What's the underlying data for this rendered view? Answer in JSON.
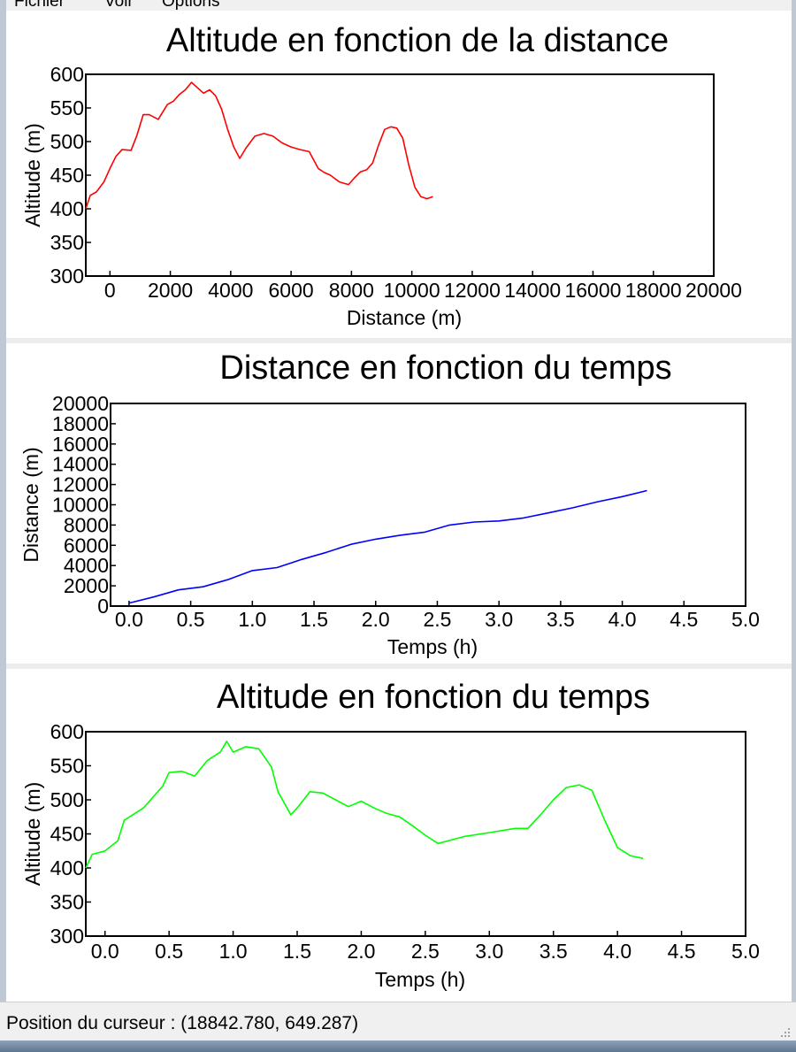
{
  "menu": [
    "Fichier",
    "Voir",
    "Options"
  ],
  "status": {
    "text": "Position du curseur : (18842.780, 649.287)"
  },
  "colors": {
    "altitude_distance": "#ff0000",
    "distance_time": "#0000ff",
    "altitude_time": "#00ff00"
  },
  "chart_data": [
    {
      "type": "line",
      "title": "Altitude en fonction de la distance",
      "xlabel": "Distance (m)",
      "ylabel": "Altitude (m)",
      "xlim": [
        -800,
        20000
      ],
      "ylim": [
        300,
        600
      ],
      "xticks": [
        0,
        2000,
        4000,
        6000,
        8000,
        10000,
        12000,
        14000,
        16000,
        18000,
        20000
      ],
      "xtick_labels": [
        "0",
        "2000",
        "4000",
        "6000",
        "8000",
        "10000",
        "12000",
        "14000",
        "16000",
        "18000",
        "20000"
      ],
      "yticks": [
        300,
        350,
        400,
        450,
        500,
        550,
        600
      ],
      "ytick_labels": [
        "300",
        "350",
        "400",
        "450",
        "500",
        "550",
        "600"
      ],
      "color": "#ff0000",
      "series": [
        {
          "x": [
            -800,
            -650,
            -450,
            -200,
            0,
            200,
            400,
            700,
            900,
            1100,
            1300,
            1600,
            1900,
            2100,
            2300,
            2500,
            2700,
            2900,
            3100,
            3300,
            3500,
            3700,
            3900,
            4100,
            4300,
            4500,
            4800,
            5100,
            5400,
            5700,
            6000,
            6300,
            6600,
            6900,
            7100,
            7300,
            7600,
            7900,
            8100,
            8300,
            8500,
            8700,
            8900,
            9100,
            9300,
            9500,
            9700,
            9900,
            10100,
            10300,
            10500,
            10700
          ],
          "y": [
            400,
            420,
            425,
            440,
            460,
            478,
            488,
            487,
            510,
            540,
            540,
            533,
            555,
            560,
            570,
            577,
            588,
            580,
            572,
            577,
            568,
            548,
            518,
            492,
            475,
            490,
            508,
            512,
            508,
            498,
            492,
            488,
            485,
            460,
            454,
            450,
            440,
            436,
            446,
            455,
            458,
            468,
            495,
            518,
            522,
            520,
            505,
            465,
            432,
            418,
            415,
            418
          ]
        }
      ]
    },
    {
      "type": "line",
      "title": "Distance en fonction du temps",
      "xlabel": "Temps (h)",
      "ylabel": "Distance (m)",
      "xlim": [
        -0.15,
        5.0
      ],
      "ylim": [
        0,
        20000
      ],
      "xticks": [
        0,
        0.5,
        1,
        1.5,
        2,
        2.5,
        3,
        3.5,
        4,
        4.5,
        5
      ],
      "xtick_labels": [
        "0.0",
        "0.5",
        "1.0",
        "1.5",
        "2.0",
        "2.5",
        "3.0",
        "3.5",
        "4.0",
        "4.5",
        "5.0"
      ],
      "yticks": [
        0,
        2000,
        4000,
        6000,
        8000,
        10000,
        12000,
        14000,
        16000,
        18000,
        20000
      ],
      "ytick_labels": [
        "0",
        "2000",
        "4000",
        "6000",
        "8000",
        "10000",
        "12000",
        "14000",
        "16000",
        "18000",
        "20000"
      ],
      "color": "#0000ff",
      "series": [
        {
          "x": [
            0,
            0.2,
            0.4,
            0.6,
            0.8,
            1.0,
            1.2,
            1.4,
            1.6,
            1.8,
            2.0,
            2.2,
            2.4,
            2.6,
            2.8,
            3.0,
            3.2,
            3.4,
            3.6,
            3.8,
            4.0,
            4.2
          ],
          "y": [
            300,
            900,
            1600,
            1900,
            2600,
            3500,
            3800,
            4600,
            5300,
            6100,
            6600,
            7000,
            7300,
            8000,
            8300,
            8400,
            8700,
            9200,
            9700,
            10300,
            10800,
            11400
          ]
        }
      ]
    },
    {
      "type": "line",
      "title": "Altitude en fonction du temps",
      "xlabel": "Temps (h)",
      "ylabel": "Altitude (m)",
      "xlim": [
        -0.15,
        5.0
      ],
      "ylim": [
        300,
        600
      ],
      "xticks": [
        0,
        0.5,
        1,
        1.5,
        2,
        2.5,
        3,
        3.5,
        4,
        4.5,
        5
      ],
      "xtick_labels": [
        "0.0",
        "0.5",
        "1.0",
        "1.5",
        "2.0",
        "2.5",
        "3.0",
        "3.5",
        "4.0",
        "4.5",
        "5.0"
      ],
      "yticks": [
        300,
        350,
        400,
        450,
        500,
        550,
        600
      ],
      "ytick_labels": [
        "300",
        "350",
        "400",
        "450",
        "500",
        "550",
        "600"
      ],
      "color": "#00ff00",
      "series": [
        {
          "x": [
            -0.15,
            -0.1,
            0.0,
            0.1,
            0.15,
            0.3,
            0.45,
            0.5,
            0.6,
            0.7,
            0.8,
            0.9,
            0.95,
            1.0,
            1.1,
            1.2,
            1.3,
            1.35,
            1.45,
            1.5,
            1.6,
            1.7,
            1.8,
            1.9,
            2.0,
            2.1,
            2.2,
            2.3,
            2.4,
            2.5,
            2.6,
            2.8,
            3.0,
            3.2,
            3.3,
            3.4,
            3.5,
            3.6,
            3.7,
            3.8,
            3.9,
            4.0,
            4.1,
            4.2
          ],
          "y": [
            400,
            420,
            425,
            440,
            470,
            488,
            520,
            540,
            542,
            535,
            558,
            570,
            586,
            570,
            578,
            575,
            548,
            512,
            478,
            488,
            512,
            510,
            500,
            490,
            498,
            488,
            480,
            475,
            462,
            448,
            436,
            446,
            452,
            458,
            458,
            478,
            500,
            518,
            522,
            514,
            470,
            430,
            418,
            414
          ]
        }
      ]
    }
  ]
}
